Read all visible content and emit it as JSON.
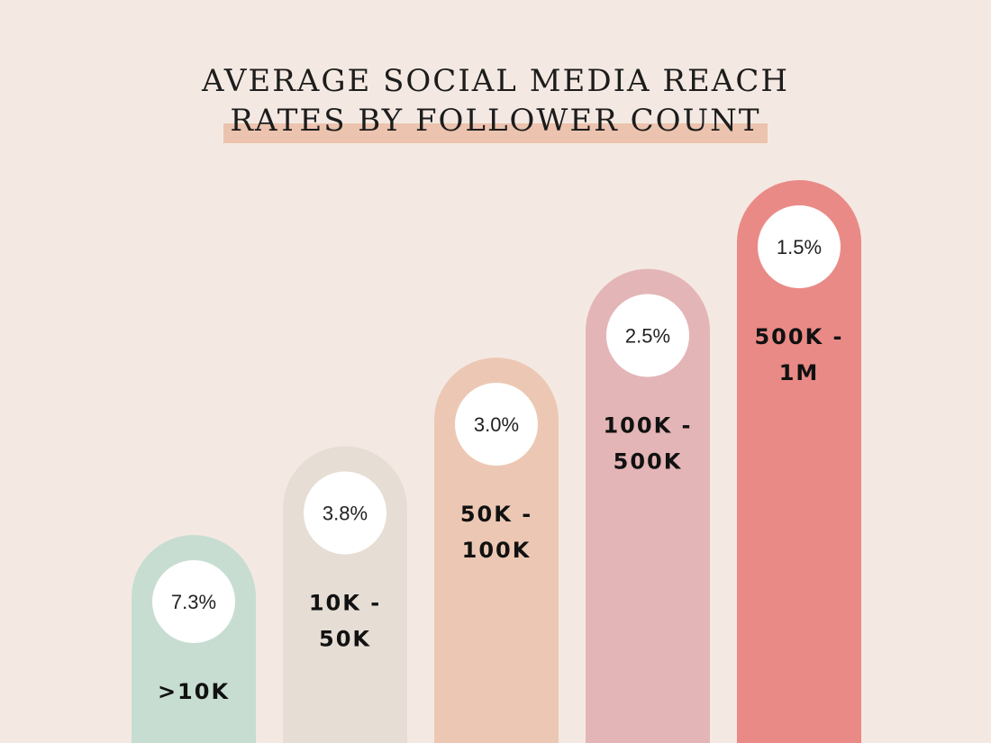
{
  "title": {
    "line1": "AVERAGE SOCIAL MEDIA REACH",
    "line2": "RATES BY FOLLOWER COUNT"
  },
  "colors": {
    "background": "#f4e9e2",
    "highlight": "#ecc3ae"
  },
  "chart_data": {
    "type": "bar",
    "title": "AVERAGE SOCIAL MEDIA REACH RATES BY FOLLOWER COUNT",
    "xlabel": "",
    "ylabel": "",
    "grid": false,
    "categories": [
      ">10K",
      "10K - 50K",
      "50K - 100K",
      "100K - 500K",
      "500K - 1M"
    ],
    "category_lines": [
      [
        ">10K"
      ],
      [
        "10K -",
        "50K"
      ],
      [
        "50K -",
        "100K"
      ],
      [
        "100K -",
        "500K"
      ],
      [
        "500K -",
        "1M"
      ]
    ],
    "values": [
      7.3,
      3.8,
      3.0,
      2.5,
      1.5
    ],
    "value_labels": [
      "7.3%",
      "3.8%",
      "3.0%",
      "2.5%",
      "1.5%"
    ],
    "bar_colors": [
      "#c7ddd1",
      "#e6ddd5",
      "#ecc8b4",
      "#e4b5b7",
      "#e98a87"
    ]
  }
}
